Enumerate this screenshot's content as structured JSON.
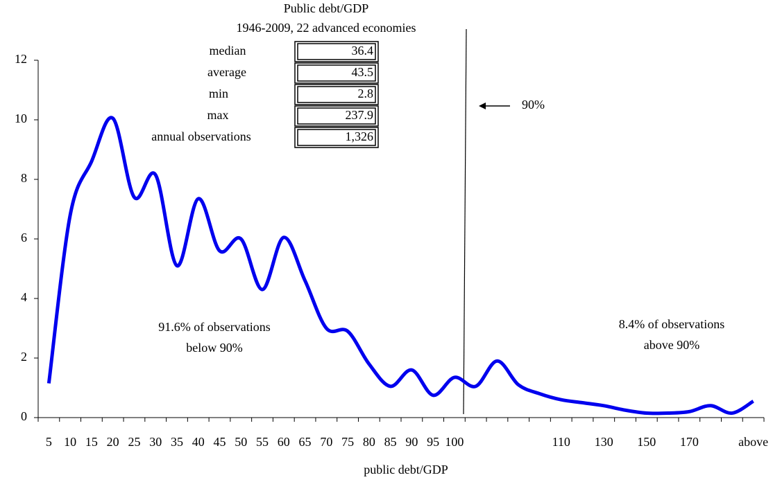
{
  "chart_data": {
    "type": "line",
    "title": "Public debt/GDP",
    "subtitle": "1946-2009, 22 advanced economies",
    "x_label": "public debt/GDP",
    "stats": [
      {
        "label": "median",
        "value": 36.4
      },
      {
        "label": "average",
        "value": 43.5
      },
      {
        "label": "min",
        "value": 2.8
      },
      {
        "label": "max",
        "value": 237.9
      },
      {
        "label": "annual observations",
        "value": "1,326"
      }
    ],
    "annotations": {
      "threshold": "90%",
      "below": [
        "91.6% of observations",
        "below 90%"
      ],
      "above": [
        "8.4% of observations",
        "above 90%"
      ]
    },
    "categories": [
      "5",
      "10",
      "15",
      "20",
      "25",
      "30",
      "35",
      "40",
      "45",
      "50",
      "55",
      "60",
      "65",
      "70",
      "75",
      "80",
      "85",
      "90",
      "95",
      "100",
      null,
      null,
      null,
      null,
      "110",
      null,
      "130",
      null,
      "150",
      null,
      "170",
      null,
      null,
      "above"
    ],
    "series": [
      {
        "name": "public debt/GDP",
        "color": "#0000ee",
        "values": [
          1.15,
          6.8,
          8.6,
          10.05,
          7.4,
          8.15,
          5.1,
          7.35,
          5.6,
          6.0,
          4.3,
          6.05,
          4.6,
          3.0,
          2.9,
          1.8,
          1.05,
          1.6,
          0.75,
          1.35,
          1.05,
          1.9,
          1.1,
          0.8,
          0.6,
          0.5,
          0.4,
          0.25,
          0.15,
          0.15,
          0.2,
          0.4,
          0.15,
          0.55
        ]
      }
    ],
    "ylim": [
      0,
      12
    ],
    "yticks": [
      0,
      2,
      4,
      6,
      8,
      10,
      12
    ],
    "grid": false
  }
}
